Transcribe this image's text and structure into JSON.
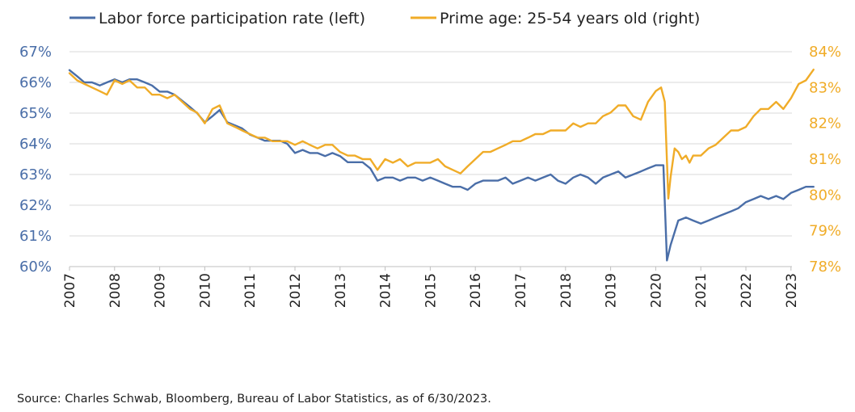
{
  "chart_data": {
    "type": "line",
    "legend_position": "top",
    "grid": "horizontal",
    "x_axis": {
      "labels": [
        "2007",
        "2008",
        "2009",
        "2010",
        "2011",
        "2012",
        "2013",
        "2014",
        "2015",
        "2016",
        "2017",
        "2018",
        "2019",
        "2020",
        "2021",
        "2022",
        "2023"
      ],
      "range": [
        2007,
        2023.5
      ]
    },
    "y_left": {
      "range": [
        60,
        67
      ],
      "ticks": [
        60,
        61,
        62,
        63,
        64,
        65,
        66,
        67
      ],
      "tick_labels": [
        "60%",
        "61%",
        "62%",
        "63%",
        "64%",
        "65%",
        "66%",
        "67%"
      ]
    },
    "y_right": {
      "range": [
        78,
        84
      ],
      "ticks": [
        78,
        79,
        80,
        81,
        82,
        83,
        84
      ],
      "tick_labels": [
        "78%",
        "79%",
        "80%",
        "81%",
        "82%",
        "83%",
        "84%"
      ]
    },
    "series": [
      {
        "name": "Labor force participation rate (left)",
        "axis": "left",
        "color": "#4a6ea8",
        "points": [
          [
            2007.0,
            66.4
          ],
          [
            2007.17,
            66.2
          ],
          [
            2007.33,
            66.0
          ],
          [
            2007.5,
            66.0
          ],
          [
            2007.67,
            65.9
          ],
          [
            2007.83,
            66.0
          ],
          [
            2008.0,
            66.1
          ],
          [
            2008.17,
            66.0
          ],
          [
            2008.33,
            66.1
          ],
          [
            2008.5,
            66.1
          ],
          [
            2008.67,
            66.0
          ],
          [
            2008.83,
            65.9
          ],
          [
            2009.0,
            65.7
          ],
          [
            2009.17,
            65.7
          ],
          [
            2009.33,
            65.6
          ],
          [
            2009.5,
            65.4
          ],
          [
            2009.67,
            65.2
          ],
          [
            2009.83,
            65.0
          ],
          [
            2010.0,
            64.7
          ],
          [
            2010.17,
            64.9
          ],
          [
            2010.33,
            65.1
          ],
          [
            2010.5,
            64.7
          ],
          [
            2010.67,
            64.6
          ],
          [
            2010.83,
            64.5
          ],
          [
            2011.0,
            64.3
          ],
          [
            2011.17,
            64.2
          ],
          [
            2011.33,
            64.1
          ],
          [
            2011.5,
            64.1
          ],
          [
            2011.67,
            64.1
          ],
          [
            2011.83,
            64.0
          ],
          [
            2012.0,
            63.7
          ],
          [
            2012.17,
            63.8
          ],
          [
            2012.33,
            63.7
          ],
          [
            2012.5,
            63.7
          ],
          [
            2012.67,
            63.6
          ],
          [
            2012.83,
            63.7
          ],
          [
            2013.0,
            63.6
          ],
          [
            2013.17,
            63.4
          ],
          [
            2013.33,
            63.4
          ],
          [
            2013.5,
            63.4
          ],
          [
            2013.67,
            63.2
          ],
          [
            2013.83,
            62.8
          ],
          [
            2014.0,
            62.9
          ],
          [
            2014.17,
            62.9
          ],
          [
            2014.33,
            62.8
          ],
          [
            2014.5,
            62.9
          ],
          [
            2014.67,
            62.9
          ],
          [
            2014.83,
            62.8
          ],
          [
            2015.0,
            62.9
          ],
          [
            2015.17,
            62.8
          ],
          [
            2015.33,
            62.7
          ],
          [
            2015.5,
            62.6
          ],
          [
            2015.67,
            62.6
          ],
          [
            2015.83,
            62.5
          ],
          [
            2016.0,
            62.7
          ],
          [
            2016.17,
            62.8
          ],
          [
            2016.33,
            62.8
          ],
          [
            2016.5,
            62.8
          ],
          [
            2016.67,
            62.9
          ],
          [
            2016.83,
            62.7
          ],
          [
            2017.0,
            62.8
          ],
          [
            2017.17,
            62.9
          ],
          [
            2017.33,
            62.8
          ],
          [
            2017.5,
            62.9
          ],
          [
            2017.67,
            63.0
          ],
          [
            2017.83,
            62.8
          ],
          [
            2018.0,
            62.7
          ],
          [
            2018.17,
            62.9
          ],
          [
            2018.33,
            63.0
          ],
          [
            2018.5,
            62.9
          ],
          [
            2018.67,
            62.7
          ],
          [
            2018.83,
            62.9
          ],
          [
            2019.0,
            63.0
          ],
          [
            2019.17,
            63.1
          ],
          [
            2019.33,
            62.9
          ],
          [
            2019.5,
            63.0
          ],
          [
            2019.67,
            63.1
          ],
          [
            2019.83,
            63.2
          ],
          [
            2020.0,
            63.3
          ],
          [
            2020.17,
            63.3
          ],
          [
            2020.25,
            60.2
          ],
          [
            2020.33,
            60.7
          ],
          [
            2020.5,
            61.5
          ],
          [
            2020.67,
            61.6
          ],
          [
            2020.83,
            61.5
          ],
          [
            2021.0,
            61.4
          ],
          [
            2021.17,
            61.5
          ],
          [
            2021.33,
            61.6
          ],
          [
            2021.5,
            61.7
          ],
          [
            2021.67,
            61.8
          ],
          [
            2021.83,
            61.9
          ],
          [
            2022.0,
            62.1
          ],
          [
            2022.17,
            62.2
          ],
          [
            2022.33,
            62.3
          ],
          [
            2022.5,
            62.2
          ],
          [
            2022.67,
            62.3
          ],
          [
            2022.83,
            62.2
          ],
          [
            2023.0,
            62.4
          ],
          [
            2023.17,
            62.5
          ],
          [
            2023.33,
            62.6
          ],
          [
            2023.5,
            62.6
          ]
        ]
      },
      {
        "name": "Prime age: 25-54 years old (right)",
        "axis": "right",
        "color": "#f0ac28",
        "points": [
          [
            2007.0,
            83.4
          ],
          [
            2007.17,
            83.2
          ],
          [
            2007.33,
            83.1
          ],
          [
            2007.5,
            83.0
          ],
          [
            2007.67,
            82.9
          ],
          [
            2007.83,
            82.8
          ],
          [
            2008.0,
            83.2
          ],
          [
            2008.17,
            83.1
          ],
          [
            2008.33,
            83.2
          ],
          [
            2008.5,
            83.0
          ],
          [
            2008.67,
            83.0
          ],
          [
            2008.83,
            82.8
          ],
          [
            2009.0,
            82.8
          ],
          [
            2009.17,
            82.7
          ],
          [
            2009.33,
            82.8
          ],
          [
            2009.5,
            82.6
          ],
          [
            2009.67,
            82.4
          ],
          [
            2009.83,
            82.3
          ],
          [
            2010.0,
            82.0
          ],
          [
            2010.17,
            82.4
          ],
          [
            2010.33,
            82.5
          ],
          [
            2010.5,
            82.0
          ],
          [
            2010.67,
            81.9
          ],
          [
            2010.83,
            81.8
          ],
          [
            2011.0,
            81.7
          ],
          [
            2011.17,
            81.6
          ],
          [
            2011.33,
            81.6
          ],
          [
            2011.5,
            81.5
          ],
          [
            2011.67,
            81.5
          ],
          [
            2011.83,
            81.5
          ],
          [
            2012.0,
            81.4
          ],
          [
            2012.17,
            81.5
          ],
          [
            2012.33,
            81.4
          ],
          [
            2012.5,
            81.3
          ],
          [
            2012.67,
            81.4
          ],
          [
            2012.83,
            81.4
          ],
          [
            2013.0,
            81.2
          ],
          [
            2013.17,
            81.1
          ],
          [
            2013.33,
            81.1
          ],
          [
            2013.5,
            81.0
          ],
          [
            2013.67,
            81.0
          ],
          [
            2013.83,
            80.7
          ],
          [
            2014.0,
            81.0
          ],
          [
            2014.17,
            80.9
          ],
          [
            2014.33,
            81.0
          ],
          [
            2014.5,
            80.8
          ],
          [
            2014.67,
            80.9
          ],
          [
            2014.83,
            80.9
          ],
          [
            2015.0,
            80.9
          ],
          [
            2015.17,
            81.0
          ],
          [
            2015.33,
            80.8
          ],
          [
            2015.5,
            80.7
          ],
          [
            2015.67,
            80.6
          ],
          [
            2015.83,
            80.8
          ],
          [
            2016.0,
            81.0
          ],
          [
            2016.17,
            81.2
          ],
          [
            2016.33,
            81.2
          ],
          [
            2016.5,
            81.3
          ],
          [
            2016.67,
            81.4
          ],
          [
            2016.83,
            81.5
          ],
          [
            2017.0,
            81.5
          ],
          [
            2017.17,
            81.6
          ],
          [
            2017.33,
            81.7
          ],
          [
            2017.5,
            81.7
          ],
          [
            2017.67,
            81.8
          ],
          [
            2017.83,
            81.8
          ],
          [
            2018.0,
            81.8
          ],
          [
            2018.17,
            82.0
          ],
          [
            2018.33,
            81.9
          ],
          [
            2018.5,
            82.0
          ],
          [
            2018.67,
            82.0
          ],
          [
            2018.83,
            82.2
          ],
          [
            2019.0,
            82.3
          ],
          [
            2019.17,
            82.5
          ],
          [
            2019.33,
            82.5
          ],
          [
            2019.5,
            82.2
          ],
          [
            2019.67,
            82.1
          ],
          [
            2019.83,
            82.6
          ],
          [
            2020.0,
            82.9
          ],
          [
            2020.12,
            83.0
          ],
          [
            2020.2,
            82.6
          ],
          [
            2020.28,
            79.9
          ],
          [
            2020.33,
            80.5
          ],
          [
            2020.42,
            81.3
          ],
          [
            2020.5,
            81.2
          ],
          [
            2020.58,
            81.0
          ],
          [
            2020.67,
            81.1
          ],
          [
            2020.75,
            80.9
          ],
          [
            2020.83,
            81.1
          ],
          [
            2021.0,
            81.1
          ],
          [
            2021.17,
            81.3
          ],
          [
            2021.33,
            81.4
          ],
          [
            2021.5,
            81.6
          ],
          [
            2021.67,
            81.8
          ],
          [
            2021.83,
            81.8
          ],
          [
            2022.0,
            81.9
          ],
          [
            2022.17,
            82.2
          ],
          [
            2022.33,
            82.4
          ],
          [
            2022.5,
            82.4
          ],
          [
            2022.67,
            82.6
          ],
          [
            2022.83,
            82.4
          ],
          [
            2023.0,
            82.7
          ],
          [
            2023.17,
            83.1
          ],
          [
            2023.33,
            83.2
          ],
          [
            2023.5,
            83.5
          ]
        ]
      }
    ]
  },
  "source": "Source: Charles Schwab, Bloomberg, Bureau of Labor Statistics, as of 6/30/2023."
}
